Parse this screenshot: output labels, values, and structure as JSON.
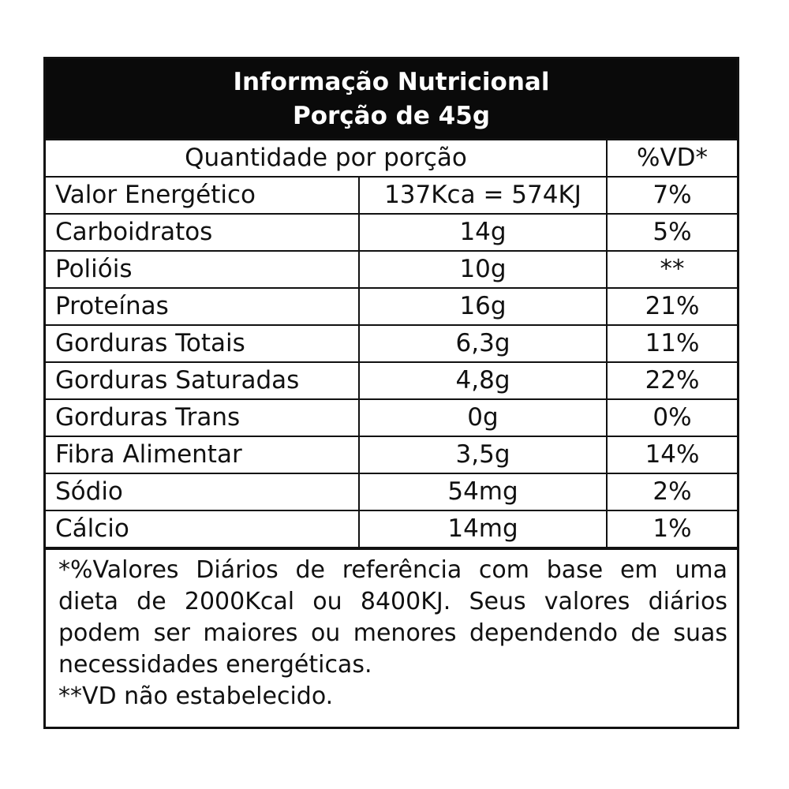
{
  "header": {
    "title": "Informação Nutricional",
    "portion": "Porção de 45g"
  },
  "table": {
    "col_header_quantity": "Quantidade por porção",
    "col_header_vd": "%VD*",
    "rows": [
      {
        "name": "Valor Energético",
        "amount": "137Kca = 574KJ",
        "vd": "7%"
      },
      {
        "name": "Carboidratos",
        "amount": "14g",
        "vd": "5%"
      },
      {
        "name": "Polióis",
        "amount": "10g",
        "vd": "**"
      },
      {
        "name": "Proteínas",
        "amount": "16g",
        "vd": "21%"
      },
      {
        "name": "Gorduras Totais",
        "amount": "6,3g",
        "vd": "11%"
      },
      {
        "name": "Gorduras Saturadas",
        "amount": "4,8g",
        "vd": "22%"
      },
      {
        "name": "Gorduras Trans",
        "amount": "0g",
        "vd": "0%"
      },
      {
        "name": "Fibra Alimentar",
        "amount": "3,5g",
        "vd": "14%"
      },
      {
        "name": "Sódio",
        "amount": "54mg",
        "vd": "2%"
      },
      {
        "name": "Cálcio",
        "amount": "14mg",
        "vd": "1%"
      }
    ]
  },
  "footnote": {
    "text": "*%Valores Diários de referência com base em uma dieta de 2000Kcal ou 8400KJ. Seus valores diários podem ser maiores ou menores dependendo de suas necessidades energéticas.",
    "note": "**VD não estabelecido."
  }
}
